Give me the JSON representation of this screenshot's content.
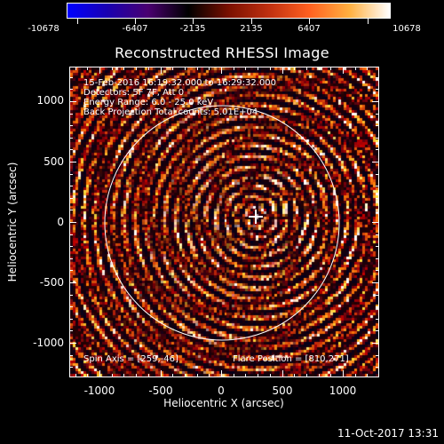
{
  "colorbar": {
    "labels": [
      "-10678",
      "-6407",
      "-2135",
      "2135",
      "6407",
      "10678"
    ],
    "gradient": [
      "#0000ff",
      "#1a00b0",
      "#4a0070",
      "#000000",
      "#7a1000",
      "#c03010",
      "#ff6020",
      "#ffb040",
      "#ffffff"
    ]
  },
  "title": "Reconstructed RHESSI Image",
  "info": {
    "line1": "15-Feb-2016 16:19:32.000 to 16:29:32.000",
    "line2": "Detectors: 5F 7F, Att 0",
    "line3": "Energy Range: 6.0 - 25.0 keV",
    "line4": "Back Projection     Total counts: 5.01E+04"
  },
  "spin_axis": "Spin Axis = [259,-46]",
  "flare_position": "Flare Position = [810,271]",
  "axes": {
    "xtitle": "Heliocentric X (arcsec)",
    "ytitle": "Heliocentric Y (arcsec)",
    "yticks": [
      "1000",
      "500",
      "0",
      "-500",
      "-1000"
    ],
    "xticks": [
      "-1000",
      "-500",
      "0",
      "500",
      "1000"
    ]
  },
  "timestamp": "11-Oct-2017 13:31",
  "colors": {
    "foreground": "#ffffff",
    "background": "#000000"
  }
}
